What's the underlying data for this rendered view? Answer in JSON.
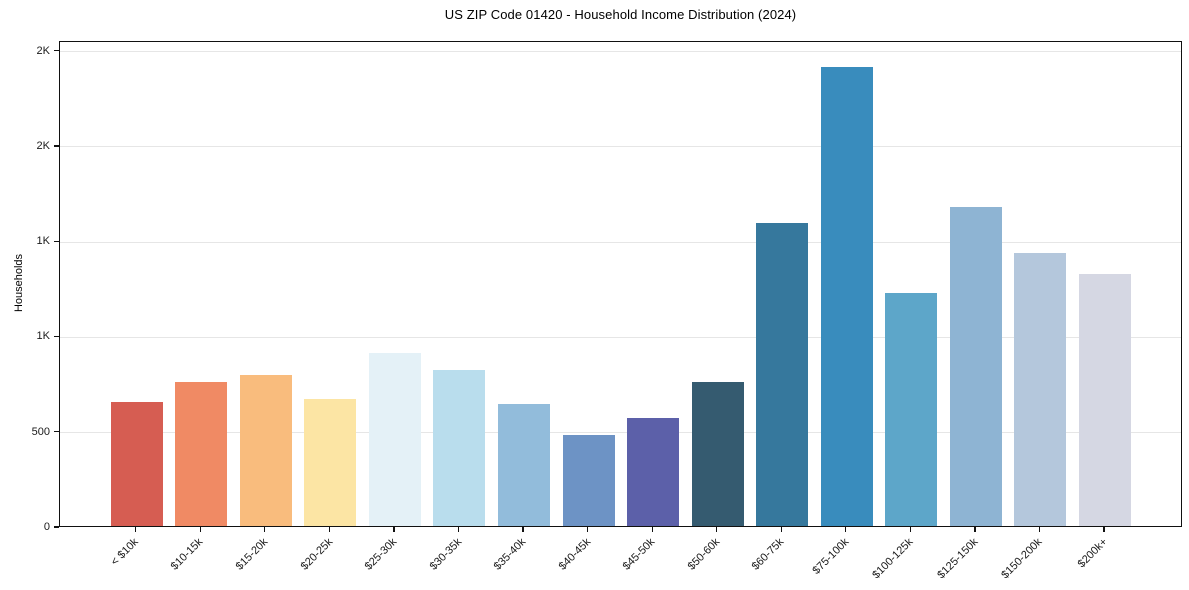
{
  "chart_data": {
    "type": "bar",
    "title": "US ZIP Code 01420 - Household Income Distribution (2024)",
    "xlabel": "",
    "ylabel": "Households",
    "ylim": [
      0,
      2550
    ],
    "grid": "horizontal",
    "legend": "none",
    "background": "#ffffff",
    "gridline_color": "#e6e6e6",
    "spine_color": "#111111",
    "yticks": [
      {
        "value": 0,
        "label": "0"
      },
      {
        "value": 500,
        "label": "500"
      },
      {
        "value": 1000,
        "label": "1K"
      },
      {
        "value": 1500,
        "label": "1K"
      },
      {
        "value": 2000,
        "label": "2K"
      },
      {
        "value": 2500,
        "label": "2K"
      }
    ],
    "categories": [
      "< $10k",
      "$10-15k",
      "$15-20k",
      "$20-25k",
      "$25-30k",
      "$30-35k",
      "$35-40k",
      "$40-45k",
      "$45-50k",
      "$50-60k",
      "$60-75k",
      "$75-100k",
      "$100-125k",
      "$125-150k",
      "$150-200k",
      "$200k+"
    ],
    "values": [
      650,
      755,
      790,
      665,
      910,
      820,
      640,
      475,
      565,
      755,
      1590,
      2410,
      1220,
      1675,
      1430,
      1320
    ],
    "bar_colors": [
      "#d65d52",
      "#f08a64",
      "#f9bc7d",
      "#fce5a4",
      "#e4f1f7",
      "#b9dded",
      "#92bcdb",
      "#6d93c5",
      "#5c60a9",
      "#355b70",
      "#36789d",
      "#398cbd",
      "#5da6c9",
      "#8eb4d3",
      "#b4c7dc",
      "#d5d7e3"
    ]
  }
}
